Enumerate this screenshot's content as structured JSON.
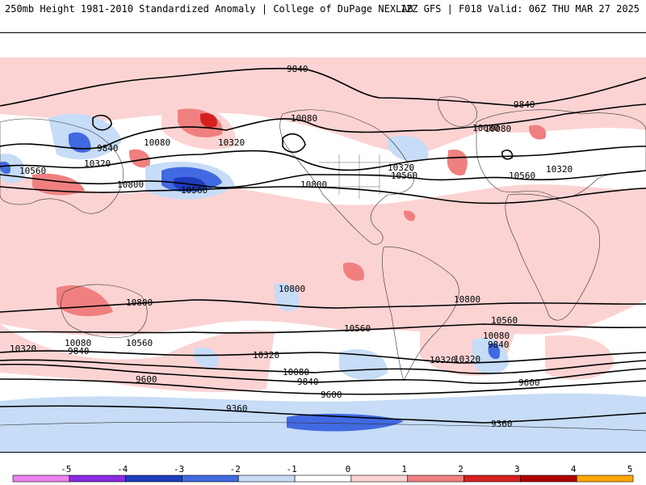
{
  "header": {
    "left_title": "250mb Height 1981-2010 Standardized Anomaly | College of DuPage NEXLAB",
    "right_title": "12Z GFS | F018 Valid: 06Z THU MAR 27 2025"
  },
  "contour_labels": [
    "9840",
    "10080",
    "10320",
    "10560",
    "9840",
    "10080",
    "10320",
    "10560",
    "10800",
    "10560",
    "10800",
    "10080",
    "10320",
    "10560",
    "10320",
    "10080",
    "9840",
    "10320",
    "10560",
    "10800",
    "10800",
    "10800",
    "10560",
    "10320",
    "10080",
    "9840",
    "9600",
    "9360",
    "10560",
    "10080",
    "9840",
    "9600",
    "9360",
    "10320",
    "10080",
    "9840",
    "9600",
    "10320"
  ],
  "colorbar": {
    "ticks": [
      "-5",
      "-4",
      "-3",
      "-2",
      "-1",
      "0",
      "1",
      "2",
      "3",
      "4",
      "5"
    ],
    "colors": [
      "#ee82ee",
      "#8a2be2",
      "#1e3cbe",
      "#4169e1",
      "#c6dcf7",
      "#ffffff",
      "#fcd3d3",
      "#f08080",
      "#d62020",
      "#b00000",
      "#ffa500"
    ]
  }
}
